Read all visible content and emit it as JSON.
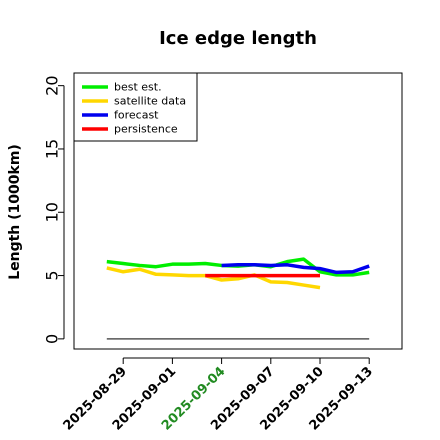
{
  "chart_data": {
    "type": "line",
    "title": "Ice edge length",
    "ylabel": "Length (1000km)",
    "xlabel": "",
    "ylim": [
      -0.8,
      21
    ],
    "yticks": [
      0,
      5,
      10,
      15,
      20
    ],
    "x_range": [
      "2025-08-26",
      "2025-09-15"
    ],
    "xticks": [
      {
        "date": "2025-08-29",
        "label": "2025-08-29",
        "color": "#000000"
      },
      {
        "date": "2025-09-01",
        "label": "2025-09-01",
        "color": "#000000"
      },
      {
        "date": "2025-09-04",
        "label": "2025-09-04",
        "color": "#228B22"
      },
      {
        "date": "2025-09-07",
        "label": "2025-09-07",
        "color": "#000000"
      },
      {
        "date": "2025-09-10",
        "label": "2025-09-10",
        "color": "#000000"
      },
      {
        "date": "2025-09-13",
        "label": "2025-09-13",
        "color": "#000000"
      }
    ],
    "legend_position": "top-left",
    "grid": false,
    "series": [
      {
        "name": "best est.",
        "color": "#00ee00",
        "x": [
          "2025-08-28",
          "2025-08-29",
          "2025-08-30",
          "2025-08-31",
          "2025-09-01",
          "2025-09-02",
          "2025-09-03",
          "2025-09-04",
          "2025-09-05",
          "2025-09-06",
          "2025-09-07",
          "2025-09-08",
          "2025-09-09",
          "2025-09-10",
          "2025-09-11",
          "2025-09-12",
          "2025-09-13"
        ],
        "y": [
          6.1,
          5.95,
          5.8,
          5.7,
          5.9,
          5.9,
          5.95,
          5.8,
          5.75,
          5.85,
          5.7,
          6.1,
          6.3,
          5.3,
          5.05,
          5.05,
          5.25
        ]
      },
      {
        "name": "satellite data",
        "color": "#ffd700",
        "x": [
          "2025-08-28",
          "2025-08-29",
          "2025-08-30",
          "2025-08-31",
          "2025-09-01",
          "2025-09-02",
          "2025-09-03",
          "2025-09-04",
          "2025-09-05",
          "2025-09-06",
          "2025-09-07",
          "2025-09-08",
          "2025-09-09",
          "2025-09-10"
        ],
        "y": [
          5.6,
          5.3,
          5.5,
          5.1,
          5.05,
          5.0,
          5.0,
          4.65,
          4.75,
          5.05,
          4.5,
          4.45,
          4.25,
          4.05
        ]
      },
      {
        "name": "forecast",
        "color": "#0000ee",
        "x": [
          "2025-09-04",
          "2025-09-05",
          "2025-09-06",
          "2025-09-07",
          "2025-09-08",
          "2025-09-09",
          "2025-09-10",
          "2025-09-11",
          "2025-09-12",
          "2025-09-13"
        ],
        "y": [
          5.8,
          5.85,
          5.85,
          5.8,
          5.85,
          5.65,
          5.55,
          5.25,
          5.3,
          5.75
        ]
      },
      {
        "name": "persistence",
        "color": "#ff0000",
        "x": [
          "2025-09-03",
          "2025-09-04",
          "2025-09-05",
          "2025-09-06",
          "2025-09-07",
          "2025-09-08",
          "2025-09-09",
          "2025-09-10"
        ],
        "y": [
          5.0,
          5.0,
          5.0,
          5.0,
          5.0,
          5.0,
          5.0,
          5.0
        ]
      }
    ],
    "reference_line": {
      "color": "#555555",
      "x": [
        "2025-08-28",
        "2025-09-13"
      ],
      "y": [
        0,
        0
      ]
    }
  }
}
